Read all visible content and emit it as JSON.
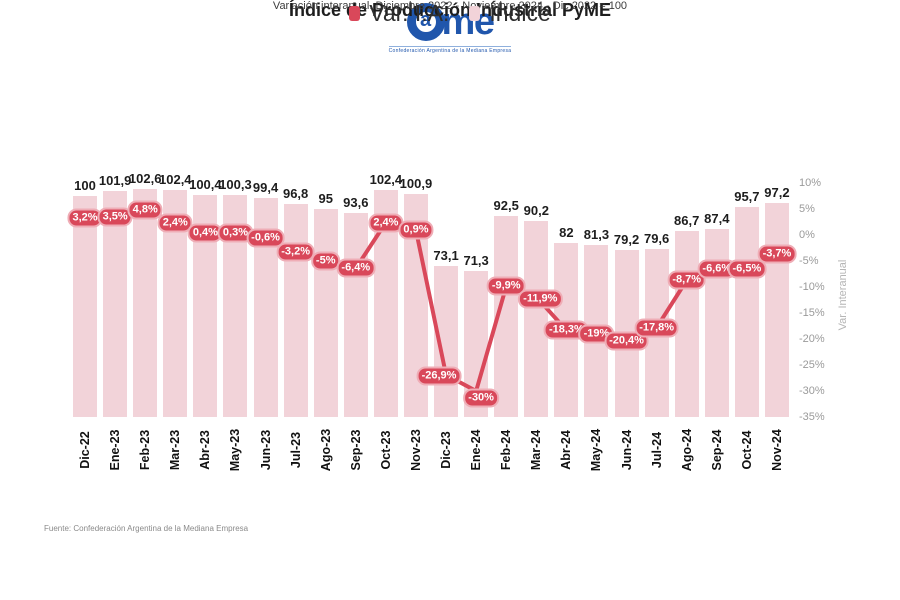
{
  "logo": {
    "text": "Came",
    "ring_letter": "a",
    "rest": "me",
    "tagline": "Confederación Argentina de la Mediana Empresa",
    "brand_color": "#2056ac"
  },
  "header": {
    "title": "Índice de Producción Industrial PyME",
    "subtitle": "Variación interanual. Diciembre 2022 - Noviembre 2024 - Dic 2022 = 100"
  },
  "chart_data": {
    "type": "bar+line",
    "categories": [
      "Dic-22",
      "Ene-23",
      "Feb-23",
      "Mar-23",
      "Abr-23",
      "May-23",
      "Jun-23",
      "Jul-23",
      "Ago-23",
      "Sep-23",
      "Oct-23",
      "Nov-23",
      "Dic-23",
      "Ene-24",
      "Feb-24",
      "Mar-24",
      "Abr-24",
      "May-24",
      "Jun-24",
      "Jul-24",
      "Ago-24",
      "Sep-24",
      "Oct-24",
      "Nov-24"
    ],
    "series": [
      {
        "name": "Var. I.A.",
        "type": "line",
        "unit": "%",
        "color": "#d9485a",
        "values": [
          3.2,
          3.5,
          4.8,
          2.4,
          0.4,
          0.3,
          -0.6,
          -3.2,
          -5,
          -6.4,
          2.4,
          0.9,
          -26.9,
          -30,
          -9.9,
          -11.9,
          -18.3,
          -19,
          -20.4,
          -17.8,
          -8.7,
          -6.6,
          -6.5,
          -3.7
        ],
        "labels": [
          "3,2%",
          "3,5%",
          "4,8%",
          "2,4%",
          "0,4%",
          "0,3%",
          "-0,6%",
          "-3,2%",
          "-5%",
          "-6,4%",
          "2,4%",
          "0,9%",
          "-26,9%",
          "-30%",
          "-9,9%",
          "-11,9%",
          "-18,3%",
          "-19%",
          "-20,4%",
          "-17,8%",
          "-8,7%",
          "-6,6%",
          "-6,5%",
          "-3,7%"
        ]
      },
      {
        "name": "Índice",
        "type": "bar",
        "color": "#f2d3d9",
        "values": [
          100,
          101.9,
          102.6,
          102.4,
          100.4,
          100.3,
          99.4,
          96.8,
          95,
          93.6,
          102.4,
          100.9,
          73.1,
          71.3,
          92.5,
          90.2,
          82,
          81.3,
          79.2,
          79.6,
          86.7,
          87.4,
          95.7,
          97.2
        ],
        "labels": [
          "100",
          "101,9",
          "102,6",
          "102,4",
          "100,4",
          "100,3",
          "99,4",
          "96,8",
          "95",
          "93,6",
          "102,4",
          "100,9",
          "73,1",
          "71,3",
          "92,5",
          "90,2",
          "82",
          "81,3",
          "79,2",
          "79,6",
          "86,7",
          "87,4",
          "95,7",
          "97,2"
        ]
      }
    ],
    "right_axis": {
      "title": "Var. Interanual",
      "ticks": [
        "10%",
        "5%",
        "0%",
        "-5%",
        "-10%",
        "-15%",
        "-20%",
        "-25%",
        "-30%",
        "-35%"
      ],
      "range": [
        10,
        -35
      ]
    },
    "grid": false,
    "legend_position": "bottom",
    "legend": [
      {
        "label": "Var. I.A.",
        "color": "#d9485a"
      },
      {
        "label": "Índice",
        "color": "#f2d3d9"
      }
    ]
  },
  "footer": {
    "source": "Fuente: Confederación Argentina de la Mediana Empresa"
  }
}
